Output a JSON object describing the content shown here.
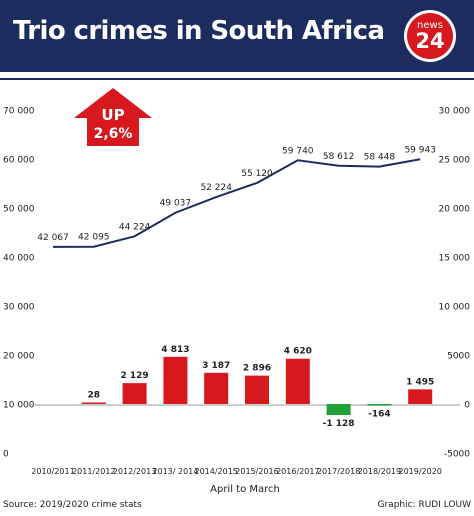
{
  "header": {
    "title": "Trio crimes in South Africa",
    "logo_top": "news",
    "logo_num": "24"
  },
  "colors": {
    "header_bg": "#1d2c5e",
    "line": "#1d2c5e",
    "positive_bar": "#d7181f",
    "negative_bar": "#21a038",
    "arrow": "#d7181f"
  },
  "badge": {
    "line1": "UP",
    "line2": "2,6%"
  },
  "chart_data": {
    "type": "bar+line",
    "categories": [
      "2010/2011",
      "2011/2012",
      "2012/2013",
      "2013/ 2014",
      "2014/2015",
      "2015/2016",
      "2016/2017",
      "2017/2018",
      "2018/2019",
      "2019/2020"
    ],
    "xlabel": "April to March",
    "line": {
      "axis": "left",
      "values": [
        42067,
        42095,
        44224,
        49037,
        52224,
        55120,
        59740,
        58612,
        58448,
        59943
      ],
      "labels": [
        "42 067",
        "42 095",
        "44 224",
        "49 037",
        "52 224",
        "55 120",
        "59 740",
        "58 612",
        "58 448",
        "59 943"
      ]
    },
    "bars": {
      "axis": "right",
      "values": [
        null,
        28,
        2129,
        4813,
        3187,
        2896,
        4620,
        -1128,
        -164,
        1495
      ],
      "labels": [
        "",
        "28",
        "2 129",
        "4 813",
        "3 187",
        "2 896",
        "4 620",
        "-1 128",
        "-164",
        "1 495"
      ]
    },
    "left_axis": {
      "range": [
        0,
        70000
      ],
      "ticks": [
        0,
        10000,
        20000,
        30000,
        40000,
        50000,
        60000,
        70000
      ],
      "tick_labels": [
        "0",
        "10 000",
        "20 000",
        "30 000",
        "40 000",
        "50 000",
        "60 000",
        "70 000"
      ]
    },
    "right_axis": {
      "range": [
        -5000,
        30000
      ],
      "ticks": [
        -5000,
        0,
        5000,
        10000,
        15000,
        20000,
        25000,
        30000
      ],
      "tick_labels": [
        "-5000",
        "0",
        "5000",
        "10 000",
        "15 000",
        "20 000",
        "25 000",
        "30 000"
      ]
    },
    "grid": false
  },
  "footer": {
    "source": "Source: 2019/2020 crime stats",
    "credit": "Graphic: RUDI LOUW"
  }
}
